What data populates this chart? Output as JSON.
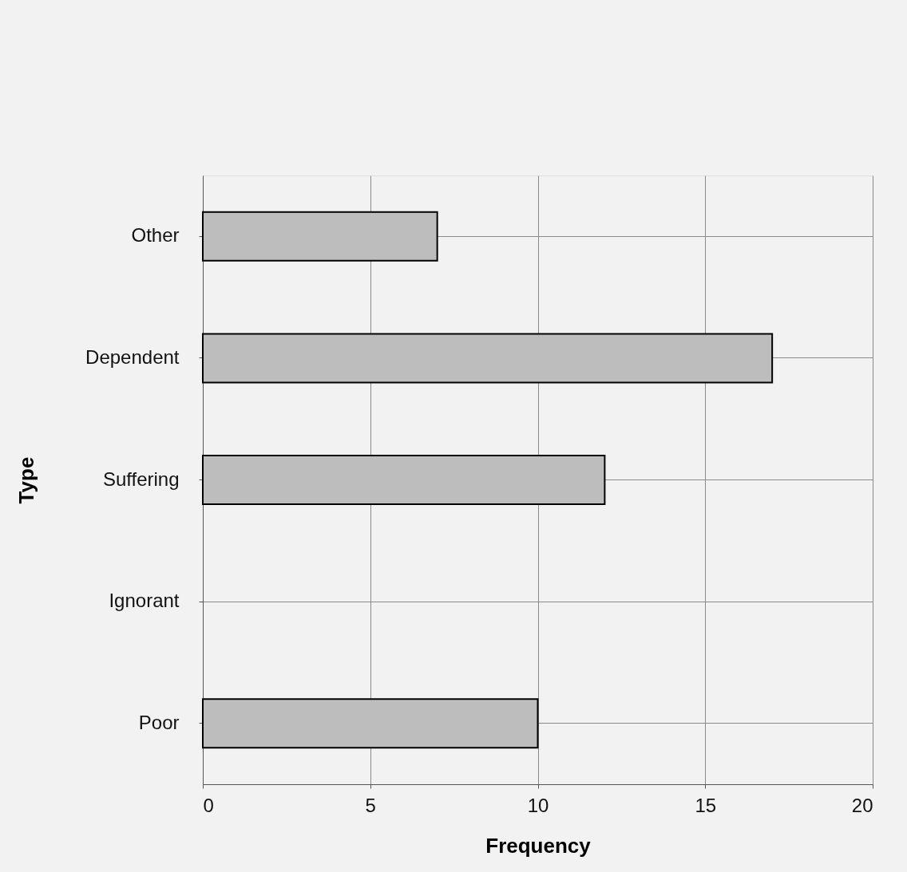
{
  "chart_data": {
    "type": "bar",
    "orientation": "horizontal",
    "xlabel": "Frequency",
    "ylabel": "Type",
    "categories": [
      "Other",
      "Dependent",
      "Suffering",
      "Ignorant",
      "Poor"
    ],
    "values": [
      7,
      17,
      12,
      0,
      10
    ],
    "color": "#bdbdbd",
    "xlim": [
      0,
      20
    ],
    "xticks": [
      0,
      5,
      10,
      15,
      20
    ],
    "grid": true
  }
}
